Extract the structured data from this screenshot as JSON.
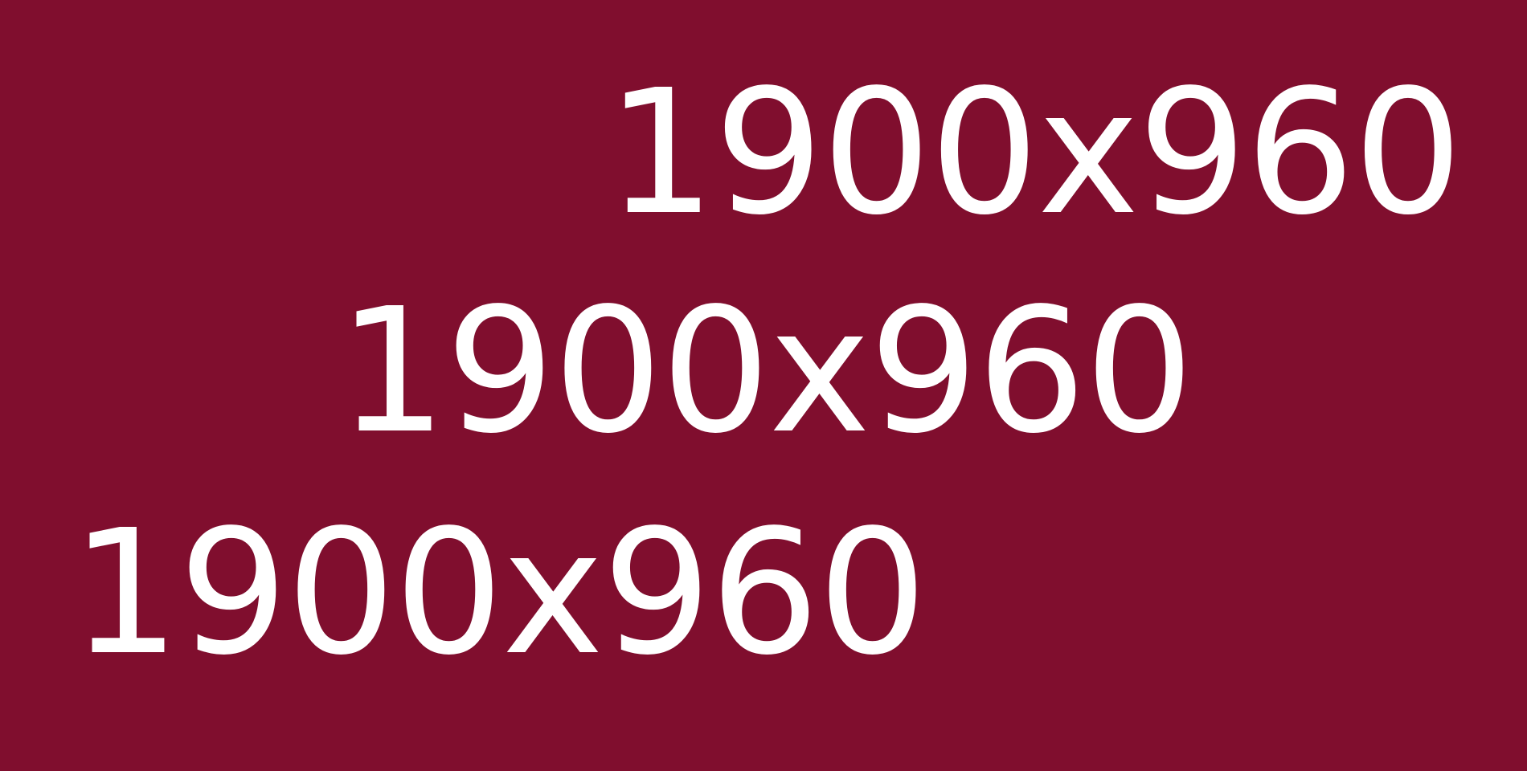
{
  "placeholder": {
    "background_color": "#800e2e",
    "text_color": "#ffffff",
    "lines": [
      "1900x960",
      "1900x960",
      "1900x960"
    ]
  }
}
